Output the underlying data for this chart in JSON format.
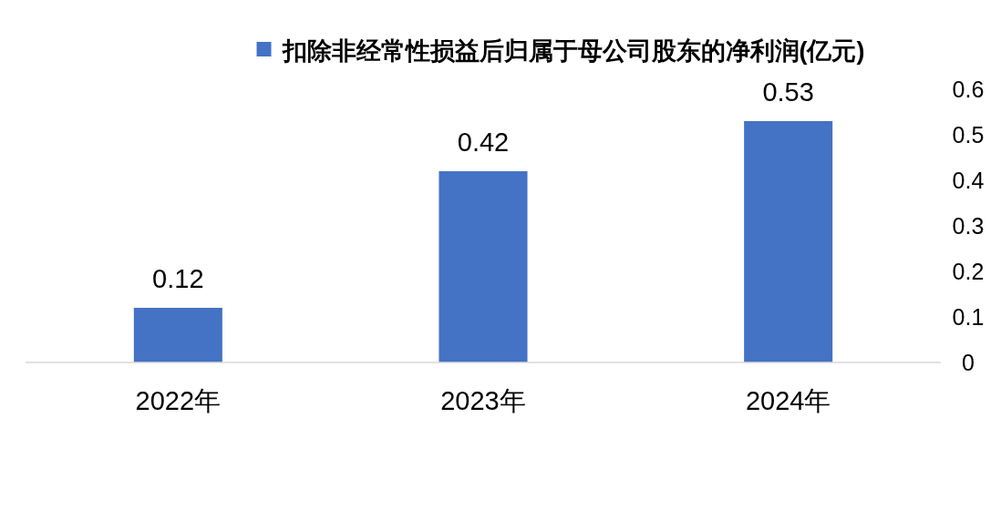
{
  "chart_data": {
    "type": "bar",
    "categories": [
      "2022年",
      "2023年",
      "2024年"
    ],
    "series": [
      {
        "name": "扣除非经常性损益后归属于母公司股东的净利润(亿元)",
        "color": "#4472c4",
        "values": [
          0.12,
          0.42,
          0.53
        ]
      }
    ],
    "ylim": [
      0,
      0.6
    ],
    "yticks": [
      0,
      0.1,
      0.2,
      0.3,
      0.4,
      0.5,
      0.6
    ],
    "data_labels": true,
    "legend": "top"
  }
}
